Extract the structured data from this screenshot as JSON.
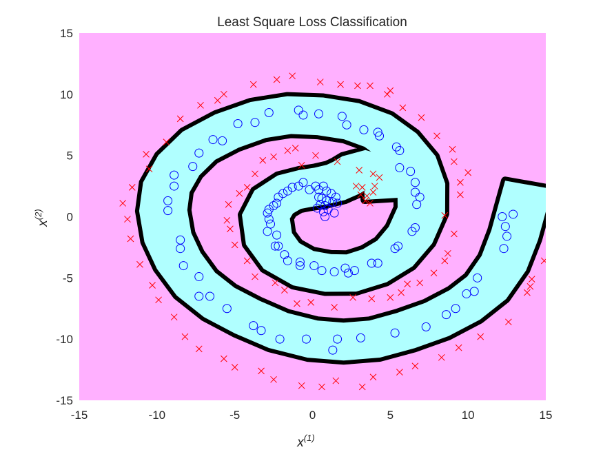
{
  "chart_data": {
    "type": "scatter",
    "title": "Least Square Loss Classification",
    "xlabel": {
      "base": "x",
      "sup": "(1)"
    },
    "ylabel": {
      "base": "x",
      "sup": "(2)"
    },
    "xlim": [
      -15,
      15
    ],
    "ylim": [
      -15,
      15
    ],
    "xticks": [
      -15,
      -10,
      -5,
      0,
      5,
      10,
      15
    ],
    "yticks": [
      -15,
      -10,
      -5,
      0,
      5,
      10,
      15
    ],
    "grid": false,
    "colors": {
      "negative_region": "#ffb0ff",
      "positive_region": "#b0ffff",
      "boundary": "#000000",
      "positive_marker": "#0000ff",
      "negative_marker": "#ff0000"
    },
    "decision_boundary": {
      "description": "spiral band (positive region) enclosed by black boundary",
      "positive_band_centerline": [
        [
          4.9,
          1.5
        ],
        [
          4.8,
          2.8
        ],
        [
          4.2,
          3.6
        ],
        [
          3.4,
          3.9
        ],
        [
          2.7,
          3.6
        ],
        [
          2.2,
          3.2
        ],
        [
          1.5,
          2.8
        ],
        [
          0.5,
          2.5
        ],
        [
          -0.5,
          2.3
        ],
        [
          -1.5,
          2.0
        ],
        [
          -2.5,
          1.2
        ],
        [
          -3.0,
          0.0
        ],
        [
          -2.8,
          -1.8
        ],
        [
          -2.0,
          -3.2
        ],
        [
          -0.6,
          -4.2
        ],
        [
          1.0,
          -4.6
        ],
        [
          2.5,
          -4.6
        ],
        [
          4.0,
          -4.0
        ],
        [
          5.3,
          -3.0
        ],
        [
          6.3,
          -1.5
        ],
        [
          7.0,
          0.5
        ],
        [
          7.0,
          2.5
        ],
        [
          6.5,
          4.3
        ],
        [
          5.5,
          5.8
        ],
        [
          4.2,
          7.0
        ],
        [
          2.5,
          7.8
        ],
        [
          0.5,
          8.2
        ],
        [
          -1.5,
          8.3
        ],
        [
          -3.5,
          7.9
        ],
        [
          -5.5,
          7.0
        ],
        [
          -7.3,
          5.8
        ],
        [
          -8.6,
          4.2
        ],
        [
          -9.4,
          2.4
        ],
        [
          -9.6,
          0.5
        ],
        [
          -9.3,
          -1.7
        ],
        [
          -8.6,
          -3.6
        ],
        [
          -7.5,
          -5.5
        ],
        [
          -6.0,
          -7.0
        ],
        [
          -4.2,
          -8.2
        ],
        [
          -2.2,
          -9.3
        ],
        [
          0.0,
          -10.0
        ],
        [
          2.0,
          -10.2
        ],
        [
          4.0,
          -10.0
        ],
        [
          6.0,
          -9.3
        ],
        [
          8.0,
          -8.4
        ],
        [
          9.8,
          -7.2
        ],
        [
          11.2,
          -5.8
        ],
        [
          12.3,
          -3.8
        ],
        [
          13.0,
          -1.5
        ],
        [
          13.5,
          0.8
        ],
        [
          13.9,
          2.6
        ]
      ],
      "band_half_width": 1.55
    },
    "series": [
      {
        "name": "",
        "marker": "o",
        "points": [
          [
            -0.2,
            2.2
          ],
          [
            0.4,
            2.2
          ],
          [
            0.9,
            2.1
          ],
          [
            1.2,
            1.9
          ],
          [
            1.5,
            1.6
          ],
          [
            1.3,
            1.2
          ],
          [
            0.8,
            0.9
          ],
          [
            0.6,
            1.5
          ],
          [
            0.5,
            1.0
          ],
          [
            0.7,
            0.4
          ],
          [
            0.8,
            0.0
          ],
          [
            1.0,
            0.6
          ],
          [
            0.9,
            1.3
          ],
          [
            0.4,
            1.6
          ],
          [
            0.3,
            0.7
          ],
          [
            1.6,
            1.1
          ],
          [
            1.4,
            0.3
          ],
          [
            0.7,
            2.5
          ],
          [
            0.2,
            2.5
          ],
          [
            -0.6,
            2.8
          ],
          [
            -0.9,
            2.5
          ],
          [
            -1.3,
            2.4
          ],
          [
            -1.6,
            2.1
          ],
          [
            -1.9,
            1.9
          ],
          [
            -2.2,
            1.6
          ],
          [
            -2.3,
            1.1
          ],
          [
            -2.5,
            0.9
          ],
          [
            -2.8,
            0.6
          ],
          [
            -2.9,
            0.3
          ],
          [
            -2.8,
            -0.2
          ],
          [
            -2.7,
            -0.6
          ],
          [
            -2.9,
            -1.2
          ],
          [
            -2.3,
            -1.5
          ],
          [
            -2.4,
            -2.4
          ],
          [
            -2.2,
            -2.4
          ],
          [
            -1.8,
            -3.1
          ],
          [
            -1.6,
            -3.6
          ],
          [
            -0.8,
            -3.7
          ],
          [
            -0.8,
            -4.0
          ],
          [
            0.1,
            -4.0
          ],
          [
            0.6,
            -4.4
          ],
          [
            1.4,
            -4.5
          ],
          [
            2.1,
            -4.2
          ],
          [
            2.3,
            -4.6
          ],
          [
            2.7,
            -4.4
          ],
          [
            3.8,
            -3.8
          ],
          [
            4.2,
            -3.8
          ],
          [
            5.3,
            -2.6
          ],
          [
            5.5,
            -2.4
          ],
          [
            6.4,
            -1.2
          ],
          [
            6.6,
            -0.9
          ],
          [
            6.7,
            1.0
          ],
          [
            6.6,
            2.0
          ],
          [
            6.9,
            1.6
          ],
          [
            6.6,
            2.8
          ],
          [
            6.3,
            3.7
          ],
          [
            5.6,
            4.0
          ],
          [
            5.6,
            5.4
          ],
          [
            5.4,
            5.7
          ],
          [
            4.2,
            6.9
          ],
          [
            4.3,
            6.6
          ],
          [
            3.3,
            7.1
          ],
          [
            2.2,
            7.5
          ],
          [
            1.9,
            8.2
          ],
          [
            0.4,
            8.4
          ],
          [
            -0.6,
            8.3
          ],
          [
            -0.9,
            8.7
          ],
          [
            -2.8,
            8.5
          ],
          [
            -3.7,
            7.7
          ],
          [
            -4.8,
            7.6
          ],
          [
            -5.8,
            6.2
          ],
          [
            -6.4,
            6.3
          ],
          [
            -7.3,
            5.2
          ],
          [
            -7.7,
            4.1
          ],
          [
            -8.9,
            3.4
          ],
          [
            -8.9,
            2.5
          ],
          [
            -9.3,
            1.3
          ],
          [
            -9.3,
            0.5
          ],
          [
            -8.5,
            -1.9
          ],
          [
            -8.5,
            -2.6
          ],
          [
            -8.3,
            -4.0
          ],
          [
            -7.3,
            -4.9
          ],
          [
            -7.3,
            -6.5
          ],
          [
            -6.6,
            -6.5
          ],
          [
            -5.5,
            -7.5
          ],
          [
            -3.8,
            -8.9
          ],
          [
            -3.3,
            -9.3
          ],
          [
            -2.1,
            -10.0
          ],
          [
            -0.4,
            -10.0
          ],
          [
            1.6,
            -10.0
          ],
          [
            1.3,
            -10.9
          ],
          [
            3.1,
            -9.9
          ],
          [
            5.3,
            -9.5
          ],
          [
            7.3,
            -9.0
          ],
          [
            8.6,
            -8.0
          ],
          [
            9.2,
            -7.5
          ],
          [
            9.9,
            -6.3
          ],
          [
            10.4,
            -6.1
          ],
          [
            10.6,
            -5.0
          ],
          [
            12.3,
            -2.6
          ],
          [
            12.5,
            -1.6
          ],
          [
            12.4,
            -0.8
          ],
          [
            12.2,
            0.0
          ],
          [
            12.9,
            0.2
          ]
        ]
      },
      {
        "name": "",
        "marker": "x",
        "points": [
          [
            3.1,
            1.8
          ],
          [
            3.4,
            1.3
          ],
          [
            3.7,
            1.1
          ],
          [
            3.5,
            1.7
          ],
          [
            3.2,
            2.4
          ],
          [
            2.8,
            2.5
          ],
          [
            4.0,
            2.5
          ],
          [
            3.9,
            2.0
          ],
          [
            4.3,
            3.2
          ],
          [
            3.9,
            3.5
          ],
          [
            3.0,
            3.8
          ],
          [
            1.6,
            4.5
          ],
          [
            0.2,
            5.0
          ],
          [
            -0.7,
            4.2
          ],
          [
            -1.1,
            5.6
          ],
          [
            -1.6,
            5.4
          ],
          [
            -2.5,
            4.9
          ],
          [
            -3.2,
            4.6
          ],
          [
            -3.7,
            3.5
          ],
          [
            -4.2,
            2.4
          ],
          [
            -4.7,
            1.9
          ],
          [
            -5.4,
            1.0
          ],
          [
            -5.5,
            -0.3
          ],
          [
            -5.3,
            -1.0
          ],
          [
            -5.0,
            -2.3
          ],
          [
            -4.2,
            -3.6
          ],
          [
            -3.7,
            -4.9
          ],
          [
            -2.4,
            -5.4
          ],
          [
            -1.8,
            -6.0
          ],
          [
            -1.0,
            -7.1
          ],
          [
            -0.1,
            -7.0
          ],
          [
            1.4,
            -7.4
          ],
          [
            2.6,
            -6.6
          ],
          [
            3.8,
            -6.7
          ],
          [
            5.0,
            -6.6
          ],
          [
            5.7,
            -6.2
          ],
          [
            6.1,
            -5.5
          ],
          [
            6.9,
            -5.4
          ],
          [
            7.8,
            -4.6
          ],
          [
            8.5,
            -3.6
          ],
          [
            8.7,
            -3.0
          ],
          [
            9.1,
            -1.4
          ],
          [
            8.5,
            0.1
          ],
          [
            9.5,
            1.8
          ],
          [
            9.5,
            2.8
          ],
          [
            10.0,
            3.6
          ],
          [
            9.1,
            4.5
          ],
          [
            9.0,
            5.5
          ],
          [
            8.0,
            6.6
          ],
          [
            7.0,
            8.1
          ],
          [
            5.8,
            8.9
          ],
          [
            5.0,
            10.3
          ],
          [
            4.8,
            10.0
          ],
          [
            3.7,
            10.7
          ],
          [
            2.9,
            10.7
          ],
          [
            1.8,
            10.8
          ],
          [
            0.5,
            11.0
          ],
          [
            -1.3,
            11.5
          ],
          [
            -2.3,
            11.2
          ],
          [
            -3.8,
            10.8
          ],
          [
            -5.7,
            10.0
          ],
          [
            -6.1,
            9.5
          ],
          [
            -7.2,
            9.1
          ],
          [
            -8.5,
            8.0
          ],
          [
            -9.4,
            6.1
          ],
          [
            -10.7,
            5.1
          ],
          [
            -10.5,
            3.9
          ],
          [
            -11.6,
            2.4
          ],
          [
            -12.2,
            1.1
          ],
          [
            -11.9,
            -0.2
          ],
          [
            -11.7,
            -1.8
          ],
          [
            -11.1,
            -3.9
          ],
          [
            -10.3,
            -5.6
          ],
          [
            -9.9,
            -6.8
          ],
          [
            -8.9,
            -8.2
          ],
          [
            -8.2,
            -9.8
          ],
          [
            -7.3,
            -10.8
          ],
          [
            -5.7,
            -11.6
          ],
          [
            -5.0,
            -12.3
          ],
          [
            -3.3,
            -12.6
          ],
          [
            -2.5,
            -13.3
          ],
          [
            -0.7,
            -13.8
          ],
          [
            0.6,
            -13.9
          ],
          [
            1.5,
            -13.4
          ],
          [
            3.9,
            -13.1
          ],
          [
            5.6,
            -12.7
          ],
          [
            6.6,
            -12.2
          ],
          [
            8.3,
            -11.5
          ],
          [
            9.4,
            -10.7
          ],
          [
            10.8,
            -9.8
          ],
          [
            12.6,
            -8.6
          ],
          [
            13.8,
            -6.2
          ],
          [
            14.1,
            -5.1
          ],
          [
            14.9,
            -3.6
          ],
          [
            14.0,
            -5.7
          ],
          [
            3.2,
            -13.9
          ]
        ]
      }
    ]
  }
}
